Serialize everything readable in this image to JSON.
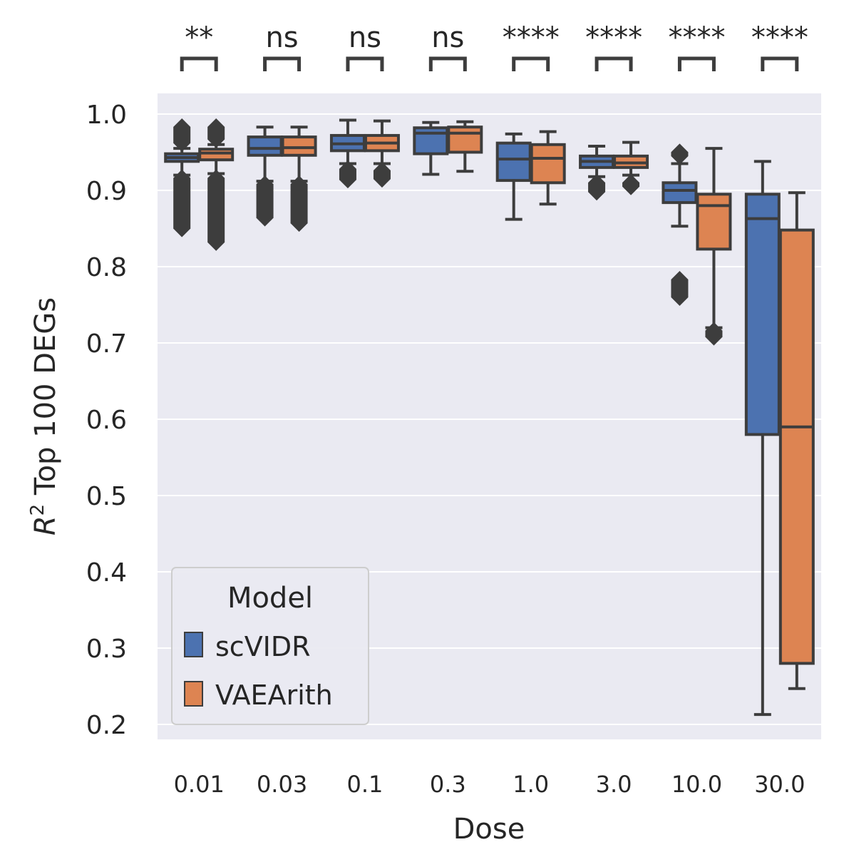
{
  "chart_data": {
    "type": "box",
    "title": "",
    "xlabel": "Dose",
    "ylabel_sup": "2",
    "ylabel_var": "R",
    "ylabel_text": " Top 100 DEGs",
    "ylim": [
      0.18,
      1.025
    ],
    "yticks": [
      0.2,
      0.3,
      0.4,
      0.5,
      0.6,
      0.7,
      0.8,
      0.9,
      1.0
    ],
    "ytick_labels": [
      "0.2",
      "0.3",
      "0.4",
      "0.5",
      "0.6",
      "0.7",
      "0.8",
      "0.9",
      "1.0"
    ],
    "categories": [
      "0.01",
      "0.03",
      "0.1",
      "0.3",
      "1.0",
      "3.0",
      "10.0",
      "30.0"
    ],
    "grid": true,
    "legend": {
      "title": "Model",
      "position": "lower-left"
    },
    "significance": [
      "**",
      "ns",
      "ns",
      "ns",
      "****",
      "****",
      "****",
      "****"
    ],
    "series": [
      {
        "name": "scVIDR",
        "color": "#4c72b0",
        "boxes": [
          {
            "whislo": 0.92,
            "q1": 0.938,
            "med": 0.943,
            "q3": 0.948,
            "whishi": 0.955,
            "fliers_range": [
              [
                0.848,
                0.918
              ],
              [
                0.96,
                0.985
              ]
            ]
          },
          {
            "whislo": 0.912,
            "q1": 0.946,
            "med": 0.955,
            "q3": 0.97,
            "whishi": 0.983,
            "fliers_range": [
              [
                0.862,
                0.91
              ]
            ]
          },
          {
            "whislo": 0.935,
            "q1": 0.952,
            "med": 0.961,
            "q3": 0.972,
            "whishi": 0.992,
            "fliers_range": [
              [
                0.912,
                0.93
              ]
            ]
          },
          {
            "whislo": 0.921,
            "q1": 0.948,
            "med": 0.975,
            "q3": 0.982,
            "whishi": 0.989,
            "fliers_range": []
          },
          {
            "whislo": 0.862,
            "q1": 0.913,
            "med": 0.941,
            "q3": 0.962,
            "whishi": 0.974,
            "fliers_range": []
          },
          {
            "whislo": 0.918,
            "q1": 0.93,
            "med": 0.938,
            "q3": 0.945,
            "whishi": 0.958,
            "fliers_range": [
              [
                0.896,
                0.912
              ]
            ]
          },
          {
            "whislo": 0.853,
            "q1": 0.884,
            "med": 0.9,
            "q3": 0.91,
            "whishi": 0.935,
            "fliers_range": [
              [
                0.758,
                0.785
              ],
              [
                0.943,
                0.952
              ]
            ]
          },
          {
            "whislo": 0.213,
            "q1": 0.58,
            "med": 0.863,
            "q3": 0.895,
            "whishi": 0.938,
            "fliers_range": []
          }
        ]
      },
      {
        "name": "VAEArith",
        "color": "#dd8452",
        "boxes": [
          {
            "whislo": 0.922,
            "q1": 0.94,
            "med": 0.949,
            "q3": 0.954,
            "whishi": 0.96,
            "fliers_range": [
              [
                0.83,
                0.918
              ],
              [
                0.965,
                0.985
              ]
            ]
          },
          {
            "whislo": 0.912,
            "q1": 0.946,
            "med": 0.956,
            "q3": 0.97,
            "whishi": 0.983,
            "fliers_range": [
              [
                0.855,
                0.91
              ]
            ]
          },
          {
            "whislo": 0.935,
            "q1": 0.952,
            "med": 0.962,
            "q3": 0.972,
            "whishi": 0.991,
            "fliers_range": [
              [
                0.913,
                0.928
              ]
            ]
          },
          {
            "whislo": 0.925,
            "q1": 0.95,
            "med": 0.975,
            "q3": 0.983,
            "whishi": 0.99,
            "fliers_range": []
          },
          {
            "whislo": 0.882,
            "q1": 0.91,
            "med": 0.942,
            "q3": 0.96,
            "whishi": 0.977,
            "fliers_range": []
          },
          {
            "whislo": 0.92,
            "q1": 0.93,
            "med": 0.936,
            "q3": 0.945,
            "whishi": 0.963,
            "fliers_range": [
              [
                0.903,
                0.912
              ]
            ]
          },
          {
            "whislo": 0.72,
            "q1": 0.823,
            "med": 0.88,
            "q3": 0.895,
            "whishi": 0.955,
            "fliers_range": [
              [
                0.706,
                0.718
              ]
            ]
          },
          {
            "whislo": 0.247,
            "q1": 0.28,
            "med": 0.59,
            "q3": 0.848,
            "whishi": 0.897,
            "fliers_range": []
          }
        ]
      }
    ]
  }
}
